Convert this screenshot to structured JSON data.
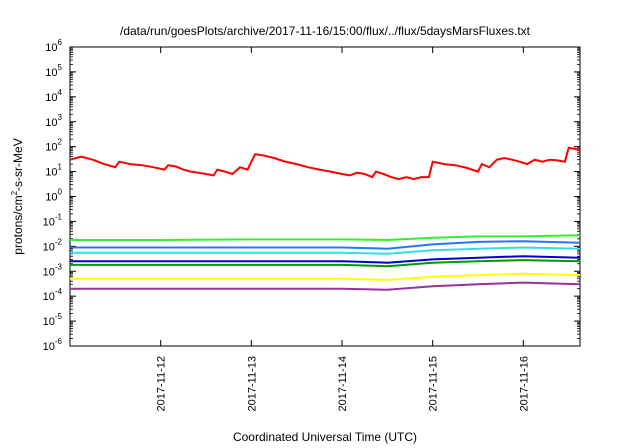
{
  "chart_data": {
    "type": "line",
    "title": "/data/run/goesPlots/archive/2017-11-16/15:00/flux/../flux/5daysMarsFluxes.txt",
    "xlabel": "Coordinated Universal Time (UTC)",
    "ylabel": {
      "prefix": "protons/cm",
      "superscript": "2",
      "suffix": "-s-sr-MeV"
    },
    "yscale": "log",
    "ylim": [
      1e-06,
      1000000
    ],
    "xlim": [
      "2017-11-11T00:00",
      "2017-11-16T15:00"
    ],
    "y_ticks": [
      {
        "mantissa": "10",
        "exp": "-6",
        "value": 1e-06
      },
      {
        "mantissa": "10",
        "exp": "-5",
        "value": 1e-05
      },
      {
        "mantissa": "10",
        "exp": "-4",
        "value": 0.0001
      },
      {
        "mantissa": "10",
        "exp": "-3",
        "value": 0.001
      },
      {
        "mantissa": "10",
        "exp": "-2",
        "value": 0.01
      },
      {
        "mantissa": "10",
        "exp": "-1",
        "value": 0.1
      },
      {
        "mantissa": "10",
        "exp": "0",
        "value": 1
      },
      {
        "mantissa": "10",
        "exp": "1",
        "value": 10
      },
      {
        "mantissa": "10",
        "exp": "2",
        "value": 100
      },
      {
        "mantissa": "10",
        "exp": "3",
        "value": 1000
      },
      {
        "mantissa": "10",
        "exp": "4",
        "value": 10000
      },
      {
        "mantissa": "10",
        "exp": "5",
        "value": 100000
      },
      {
        "mantissa": "10",
        "exp": "6",
        "value": 1000000
      }
    ],
    "x_ticks": [
      {
        "label": "2017-11-12",
        "value": "2017-11-12T00:00"
      },
      {
        "label": "2017-11-13",
        "value": "2017-11-13T00:00"
      },
      {
        "label": "2017-11-14",
        "value": "2017-11-14T00:00"
      },
      {
        "label": "2017-11-15",
        "value": "2017-11-15T00:00"
      },
      {
        "label": "2017-11-16",
        "value": "2017-11-16T00:00"
      }
    ],
    "grid": false,
    "legend": "none",
    "series": [
      {
        "color": "#ff0000",
        "points": [
          [
            "2017-11-11T00:00",
            30
          ],
          [
            "2017-11-11T03:00",
            40
          ],
          [
            "2017-11-11T06:00",
            30
          ],
          [
            "2017-11-11T09:00",
            20
          ],
          [
            "2017-11-11T12:00",
            15
          ],
          [
            "2017-11-11T13:00",
            25
          ],
          [
            "2017-11-11T16:00",
            20
          ],
          [
            "2017-11-11T19:00",
            18
          ],
          [
            "2017-11-11T22:00",
            15
          ],
          [
            "2017-11-12T01:00",
            12
          ],
          [
            "2017-11-12T02:00",
            18
          ],
          [
            "2017-11-12T04:00",
            16
          ],
          [
            "2017-11-12T06:00",
            12
          ],
          [
            "2017-11-12T08:00",
            10
          ],
          [
            "2017-11-12T10:00",
            9
          ],
          [
            "2017-11-12T14:00",
            7
          ],
          [
            "2017-11-12T15:00",
            12
          ],
          [
            "2017-11-12T17:00",
            10
          ],
          [
            "2017-11-12T19:00",
            8
          ],
          [
            "2017-11-12T21:00",
            15
          ],
          [
            "2017-11-12T23:00",
            12
          ],
          [
            "2017-11-13T00:00",
            25
          ],
          [
            "2017-11-13T01:00",
            50
          ],
          [
            "2017-11-13T03:00",
            45
          ],
          [
            "2017-11-13T06:00",
            35
          ],
          [
            "2017-11-13T09:00",
            25
          ],
          [
            "2017-11-13T12:00",
            20
          ],
          [
            "2017-11-13T15:00",
            15
          ],
          [
            "2017-11-13T18:00",
            12
          ],
          [
            "2017-11-13T21:00",
            10
          ],
          [
            "2017-11-14T00:00",
            8
          ],
          [
            "2017-11-14T02:00",
            7
          ],
          [
            "2017-11-14T04:00",
            9
          ],
          [
            "2017-11-14T06:00",
            8
          ],
          [
            "2017-11-14T08:00",
            6
          ],
          [
            "2017-11-14T09:00",
            10
          ],
          [
            "2017-11-14T11:00",
            8
          ],
          [
            "2017-11-14T13:00",
            6
          ],
          [
            "2017-11-14T15:00",
            5
          ],
          [
            "2017-11-14T17:00",
            6
          ],
          [
            "2017-11-14T19:00",
            5
          ],
          [
            "2017-11-14T21:00",
            6
          ],
          [
            "2017-11-14T23:00",
            6
          ],
          [
            "2017-11-15T00:00",
            25
          ],
          [
            "2017-11-15T03:00",
            20
          ],
          [
            "2017-11-15T06:00",
            18
          ],
          [
            "2017-11-15T09:00",
            14
          ],
          [
            "2017-11-15T12:00",
            10
          ],
          [
            "2017-11-15T13:00",
            20
          ],
          [
            "2017-11-15T15:00",
            15
          ],
          [
            "2017-11-15T17:00",
            30
          ],
          [
            "2017-11-15T19:00",
            35
          ],
          [
            "2017-11-15T21:00",
            30
          ],
          [
            "2017-11-15T23:00",
            25
          ],
          [
            "2017-11-16T01:00",
            20
          ],
          [
            "2017-11-16T03:00",
            30
          ],
          [
            "2017-11-16T05:00",
            25
          ],
          [
            "2017-11-16T07:00",
            30
          ],
          [
            "2017-11-16T09:00",
            28
          ],
          [
            "2017-11-16T11:00",
            25
          ],
          [
            "2017-11-16T12:00",
            90
          ],
          [
            "2017-11-16T14:00",
            80
          ],
          [
            "2017-11-16T15:00",
            70
          ]
        ]
      },
      {
        "color": "#33ee33",
        "points": [
          [
            "2017-11-11T00:00",
            0.018
          ],
          [
            "2017-11-11T06:00",
            0.018
          ],
          [
            "2017-11-12T00:00",
            0.018
          ],
          [
            "2017-11-13T00:00",
            0.019
          ],
          [
            "2017-11-14T00:00",
            0.019
          ],
          [
            "2017-11-14T12:00",
            0.018
          ],
          [
            "2017-11-15T00:00",
            0.022
          ],
          [
            "2017-11-15T12:00",
            0.025
          ],
          [
            "2017-11-16T00:00",
            0.025
          ],
          [
            "2017-11-16T15:00",
            0.028
          ]
        ]
      },
      {
        "color": "#2277ff",
        "points": [
          [
            "2017-11-11T00:00",
            0.009
          ],
          [
            "2017-11-12T00:00",
            0.009
          ],
          [
            "2017-11-13T00:00",
            0.009
          ],
          [
            "2017-11-14T00:00",
            0.009
          ],
          [
            "2017-11-14T12:00",
            0.008
          ],
          [
            "2017-11-15T00:00",
            0.012
          ],
          [
            "2017-11-15T12:00",
            0.015
          ],
          [
            "2017-11-16T00:00",
            0.016
          ],
          [
            "2017-11-16T15:00",
            0.014
          ]
        ]
      },
      {
        "color": "#33dddd",
        "points": [
          [
            "2017-11-11T00:00",
            0.0055
          ],
          [
            "2017-11-12T00:00",
            0.0055
          ],
          [
            "2017-11-13T00:00",
            0.0055
          ],
          [
            "2017-11-14T00:00",
            0.0055
          ],
          [
            "2017-11-14T12:00",
            0.005
          ],
          [
            "2017-11-15T00:00",
            0.007
          ],
          [
            "2017-11-15T12:00",
            0.008
          ],
          [
            "2017-11-16T00:00",
            0.009
          ],
          [
            "2017-11-16T15:00",
            0.008
          ]
        ]
      },
      {
        "color": "#0000cc",
        "points": [
          [
            "2017-11-11T00:00",
            0.0025
          ],
          [
            "2017-11-12T00:00",
            0.0025
          ],
          [
            "2017-11-13T00:00",
            0.0025
          ],
          [
            "2017-11-14T00:00",
            0.0025
          ],
          [
            "2017-11-14T12:00",
            0.0022
          ],
          [
            "2017-11-15T00:00",
            0.003
          ],
          [
            "2017-11-15T12:00",
            0.0035
          ],
          [
            "2017-11-16T00:00",
            0.004
          ],
          [
            "2017-11-16T15:00",
            0.0035
          ]
        ]
      },
      {
        "color": "#009900",
        "points": [
          [
            "2017-11-11T00:00",
            0.0018
          ],
          [
            "2017-11-12T00:00",
            0.0018
          ],
          [
            "2017-11-13T00:00",
            0.0018
          ],
          [
            "2017-11-14T00:00",
            0.0018
          ],
          [
            "2017-11-14T12:00",
            0.0016
          ],
          [
            "2017-11-15T00:00",
            0.0022
          ],
          [
            "2017-11-15T12:00",
            0.0025
          ],
          [
            "2017-11-16T00:00",
            0.0028
          ],
          [
            "2017-11-16T15:00",
            0.0025
          ]
        ]
      },
      {
        "color": "#ffff00",
        "points": [
          [
            "2017-11-11T00:00",
            0.0005
          ],
          [
            "2017-11-12T00:00",
            0.0005
          ],
          [
            "2017-11-13T00:00",
            0.0005
          ],
          [
            "2017-11-14T00:00",
            0.0005
          ],
          [
            "2017-11-14T12:00",
            0.00045
          ],
          [
            "2017-11-15T00:00",
            0.0006
          ],
          [
            "2017-11-15T12:00",
            0.0007
          ],
          [
            "2017-11-16T00:00",
            0.0008
          ],
          [
            "2017-11-16T15:00",
            0.0007
          ]
        ]
      },
      {
        "color": "#993399",
        "points": [
          [
            "2017-11-11T00:00",
            0.0002
          ],
          [
            "2017-11-12T00:00",
            0.0002
          ],
          [
            "2017-11-13T00:00",
            0.0002
          ],
          [
            "2017-11-14T00:00",
            0.0002
          ],
          [
            "2017-11-14T12:00",
            0.00018
          ],
          [
            "2017-11-15T00:00",
            0.00025
          ],
          [
            "2017-11-15T12:00",
            0.0003
          ],
          [
            "2017-11-16T00:00",
            0.00035
          ],
          [
            "2017-11-16T15:00",
            0.0003
          ]
        ]
      }
    ]
  }
}
